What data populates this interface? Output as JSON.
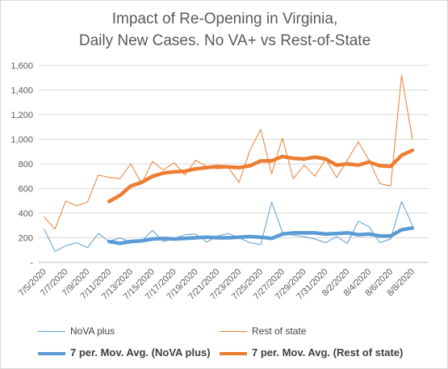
{
  "chart_data": {
    "type": "line",
    "title_line1": "Impact of Re-Opening in Virginia,",
    "title_line2": "Daily New Cases. No VA+ vs Rest-of-State",
    "ylim": [
      0,
      1600
    ],
    "y_ticks": [
      "-",
      "200",
      "400",
      "600",
      "800",
      "1,000",
      "1,200",
      "1,400",
      "1,600"
    ],
    "x": [
      "7/5/2020",
      "7/6/2020",
      "7/7/2020",
      "7/8/2020",
      "7/9/2020",
      "7/10/2020",
      "7/11/2020",
      "7/12/2020",
      "7/13/2020",
      "7/14/2020",
      "7/15/2020",
      "7/16/2020",
      "7/17/2020",
      "7/18/2020",
      "7/19/2020",
      "7/20/2020",
      "7/21/2020",
      "7/22/2020",
      "7/23/2020",
      "7/24/2020",
      "7/25/2020",
      "7/26/2020",
      "7/27/2020",
      "7/28/2020",
      "7/29/2020",
      "7/30/2020",
      "7/31/2020",
      "8/1/2020",
      "8/2/2020",
      "8/3/2020",
      "8/4/2020",
      "8/5/2020",
      "8/6/2020",
      "8/7/2020",
      "8/8/2020",
      "8/9/2020"
    ],
    "x_tick_labels": [
      "7/5/2020",
      "7/7/2020",
      "7/9/2020",
      "7/11/2020",
      "7/13/2020",
      "7/15/2020",
      "7/17/2020",
      "7/19/2020",
      "7/21/2020",
      "7/23/2020",
      "7/25/2020",
      "7/27/2020",
      "7/29/2020",
      "7/31/2020",
      "8/2/2020",
      "8/4/2020",
      "8/6/2020",
      "8/8/2020"
    ],
    "grid": true,
    "legend_position": "bottom",
    "series": [
      {
        "name": "NoVA plus",
        "color": "#5b9bd5",
        "style": "thin",
        "values": [
          270,
          90,
          135,
          160,
          120,
          235,
          170,
          200,
          165,
          175,
          260,
          170,
          195,
          225,
          230,
          165,
          215,
          235,
          200,
          160,
          145,
          490,
          245,
          220,
          210,
          190,
          160,
          210,
          155,
          335,
          290,
          160,
          190,
          495,
          300,
          null
        ]
      },
      {
        "name": "Rest of state",
        "color": "#ed7d31",
        "style": "thin",
        "values": [
          370,
          270,
          500,
          460,
          490,
          710,
          690,
          680,
          800,
          640,
          820,
          750,
          810,
          710,
          830,
          780,
          760,
          770,
          650,
          910,
          1080,
          720,
          1010,
          680,
          790,
          700,
          840,
          690,
          830,
          980,
          830,
          640,
          620,
          1520,
          1000,
          null
        ]
      },
      {
        "name": "7 per. Mov. Avg. (NoVA plus)",
        "color": "#5b9bd5",
        "style": "thick",
        "values": [
          null,
          null,
          null,
          null,
          null,
          null,
          170,
          155,
          170,
          175,
          190,
          195,
          190,
          195,
          200,
          205,
          200,
          200,
          205,
          210,
          205,
          195,
          230,
          240,
          240,
          240,
          230,
          235,
          240,
          225,
          230,
          215,
          215,
          265,
          280,
          null
        ]
      },
      {
        "name": "7 per. Mov. Avg. (Rest of state)",
        "color": "#ed7d31",
        "style": "thick",
        "values": [
          null,
          null,
          null,
          null,
          null,
          null,
          495,
          545,
          620,
          650,
          700,
          725,
          735,
          740,
          760,
          770,
          780,
          775,
          770,
          785,
          825,
          825,
          860,
          845,
          840,
          855,
          840,
          790,
          800,
          790,
          815,
          785,
          780,
          870,
          910,
          null
        ]
      }
    ]
  }
}
